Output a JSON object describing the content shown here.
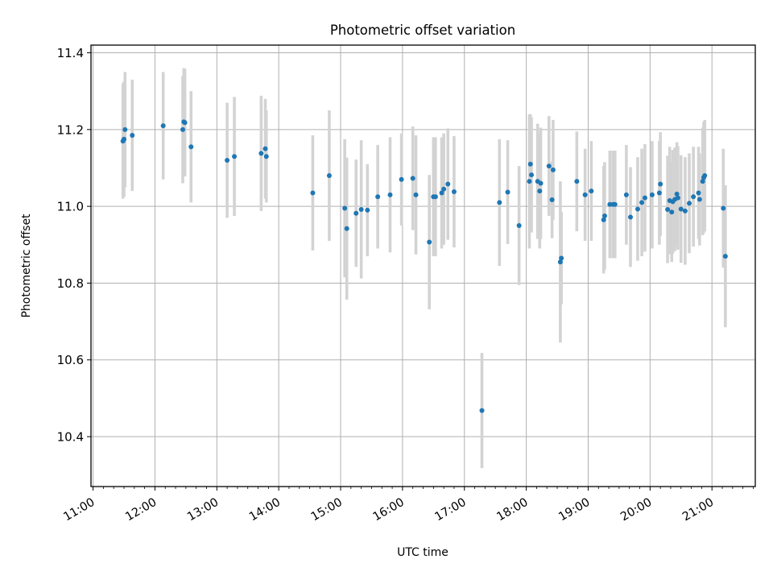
{
  "chart_data": {
    "type": "scatter",
    "title": "Photometric offset variation",
    "xlabel": "UTC time",
    "ylabel": "Photometric offset",
    "x_ticks": [
      "11:00",
      "12:00",
      "13:00",
      "14:00",
      "15:00",
      "16:00",
      "17:00",
      "18:00",
      "19:00",
      "20:00",
      "21:00"
    ],
    "y_ticks": [
      "10.4",
      "10.6",
      "10.8",
      "11.0",
      "11.2",
      "11.4"
    ],
    "xlim": [
      "10:58",
      "21:42"
    ],
    "ylim": [
      10.27,
      11.42
    ],
    "grid": true,
    "colors": {
      "point": "#1f77b4",
      "errorbar": "#d3d3d3",
      "grid": "#b0b0b0"
    },
    "points": [
      {
        "x": "11:29",
        "y": 11.17,
        "err": 0.15
      },
      {
        "x": "11:30",
        "y": 11.175,
        "err": 0.15
      },
      {
        "x": "11:31",
        "y": 11.2,
        "err": 0.15
      },
      {
        "x": "11:38",
        "y": 11.185,
        "err": 0.145
      },
      {
        "x": "12:08",
        "y": 11.21,
        "err": 0.14
      },
      {
        "x": "12:27",
        "y": 11.2,
        "err": 0.14
      },
      {
        "x": "12:28",
        "y": 11.22,
        "err": 0.14
      },
      {
        "x": "12:29",
        "y": 11.218,
        "err": 0.14
      },
      {
        "x": "12:35",
        "y": 11.155,
        "err": 0.145
      },
      {
        "x": "13:10",
        "y": 11.12,
        "err": 0.15
      },
      {
        "x": "13:17",
        "y": 11.13,
        "err": 0.155
      },
      {
        "x": "13:43",
        "y": 11.138,
        "err": 0.15
      },
      {
        "x": "13:47",
        "y": 11.15,
        "err": 0.13
      },
      {
        "x": "13:48",
        "y": 11.13,
        "err": 0.12
      },
      {
        "x": "14:33",
        "y": 11.035,
        "err": 0.15
      },
      {
        "x": "14:49",
        "y": 11.08,
        "err": 0.17
      },
      {
        "x": "15:04",
        "y": 10.995,
        "err": 0.18
      },
      {
        "x": "15:06",
        "y": 10.942,
        "err": 0.185
      },
      {
        "x": "15:15",
        "y": 10.982,
        "err": 0.14
      },
      {
        "x": "15:20",
        "y": 10.992,
        "err": 0.18
      },
      {
        "x": "15:26",
        "y": 10.99,
        "err": 0.12
      },
      {
        "x": "15:36",
        "y": 11.025,
        "err": 0.135
      },
      {
        "x": "15:48",
        "y": 11.03,
        "err": 0.15
      },
      {
        "x": "15:59",
        "y": 11.07,
        "err": 0.12
      },
      {
        "x": "16:10",
        "y": 11.073,
        "err": 0.135
      },
      {
        "x": "16:13",
        "y": 11.03,
        "err": 0.155
      },
      {
        "x": "16:26",
        "y": 10.907,
        "err": 0.175
      },
      {
        "x": "16:30",
        "y": 11.025,
        "err": 0.155
      },
      {
        "x": "16:32",
        "y": 11.025,
        "err": 0.155
      },
      {
        "x": "16:38",
        "y": 11.035,
        "err": 0.145
      },
      {
        "x": "16:40",
        "y": 11.045,
        "err": 0.145
      },
      {
        "x": "16:44",
        "y": 11.058,
        "err": 0.145
      },
      {
        "x": "16:50",
        "y": 11.038,
        "err": 0.145
      },
      {
        "x": "17:17",
        "y": 10.468,
        "err": 0.15
      },
      {
        "x": "17:34",
        "y": 11.01,
        "err": 0.165
      },
      {
        "x": "17:42",
        "y": 11.037,
        "err": 0.135
      },
      {
        "x": "17:53",
        "y": 10.95,
        "err": 0.155
      },
      {
        "x": "18:03",
        "y": 11.065,
        "err": 0.175
      },
      {
        "x": "18:04",
        "y": 11.11,
        "err": 0.13
      },
      {
        "x": "18:05",
        "y": 11.082,
        "err": 0.15
      },
      {
        "x": "18:11",
        "y": 11.065,
        "err": 0.15
      },
      {
        "x": "18:13",
        "y": 11.04,
        "err": 0.15
      },
      {
        "x": "18:14",
        "y": 11.06,
        "err": 0.145
      },
      {
        "x": "18:22",
        "y": 11.105,
        "err": 0.13
      },
      {
        "x": "18:25",
        "y": 11.017,
        "err": 0.1
      },
      {
        "x": "18:26",
        "y": 11.095,
        "err": 0.13
      },
      {
        "x": "18:33",
        "y": 10.855,
        "err": 0.21
      },
      {
        "x": "18:34",
        "y": 10.865,
        "err": 0.12
      },
      {
        "x": "18:49",
        "y": 11.065,
        "err": 0.13
      },
      {
        "x": "18:57",
        "y": 11.03,
        "err": 0.12
      },
      {
        "x": "19:03",
        "y": 11.04,
        "err": 0.13
      },
      {
        "x": "19:15",
        "y": 10.965,
        "err": 0.14
      },
      {
        "x": "19:16",
        "y": 10.975,
        "err": 0.14
      },
      {
        "x": "19:21",
        "y": 11.005,
        "err": 0.14
      },
      {
        "x": "19:24",
        "y": 11.005,
        "err": 0.14
      },
      {
        "x": "19:26",
        "y": 11.005,
        "err": 0.14
      },
      {
        "x": "19:37",
        "y": 11.03,
        "err": 0.13
      },
      {
        "x": "19:41",
        "y": 10.972,
        "err": 0.13
      },
      {
        "x": "19:48",
        "y": 10.993,
        "err": 0.135
      },
      {
        "x": "19:52",
        "y": 11.01,
        "err": 0.14
      },
      {
        "x": "19:55",
        "y": 11.022,
        "err": 0.14
      },
      {
        "x": "20:02",
        "y": 11.03,
        "err": 0.14
      },
      {
        "x": "20:09",
        "y": 11.035,
        "err": 0.135
      },
      {
        "x": "20:10",
        "y": 11.058,
        "err": 0.135
      },
      {
        "x": "20:17",
        "y": 10.992,
        "err": 0.14
      },
      {
        "x": "20:19",
        "y": 11.015,
        "err": 0.14
      },
      {
        "x": "20:21",
        "y": 10.985,
        "err": 0.13
      },
      {
        "x": "20:22",
        "y": 11.012,
        "err": 0.135
      },
      {
        "x": "20:24",
        "y": 11.018,
        "err": 0.135
      },
      {
        "x": "20:26",
        "y": 11.032,
        "err": 0.135
      },
      {
        "x": "20:27",
        "y": 11.022,
        "err": 0.135
      },
      {
        "x": "20:30",
        "y": 10.993,
        "err": 0.14
      },
      {
        "x": "20:34",
        "y": 10.988,
        "err": 0.14
      },
      {
        "x": "20:38",
        "y": 11.008,
        "err": 0.13
      },
      {
        "x": "20:42",
        "y": 11.025,
        "err": 0.13
      },
      {
        "x": "20:47",
        "y": 11.035,
        "err": 0.12
      },
      {
        "x": "20:48",
        "y": 11.018,
        "err": 0.12
      },
      {
        "x": "20:51",
        "y": 11.065,
        "err": 0.14
      },
      {
        "x": "20:52",
        "y": 11.075,
        "err": 0.145
      },
      {
        "x": "20:53",
        "y": 11.08,
        "err": 0.145
      },
      {
        "x": "21:11",
        "y": 10.995,
        "err": 0.155
      },
      {
        "x": "21:13",
        "y": 10.87,
        "err": 0.185
      }
    ]
  }
}
